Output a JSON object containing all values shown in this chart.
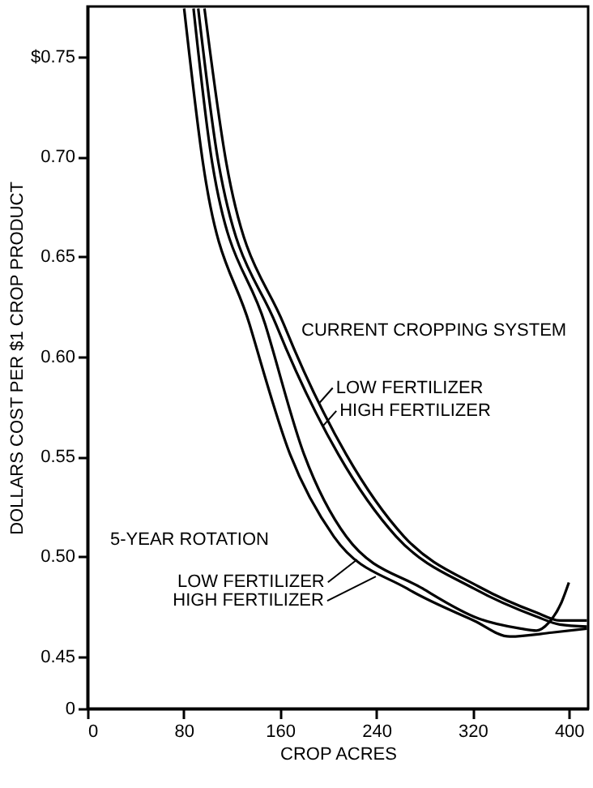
{
  "chart_data": {
    "type": "line",
    "xlabel": "CROP ACRES",
    "ylabel": "DOLLARS COST PER $1 CROP PRODUCT",
    "xlim": [
      0,
      416
    ],
    "ylim": [
      0.424,
      0.775
    ],
    "xticks": [
      0,
      80,
      160,
      240,
      320,
      400
    ],
    "yticks": [
      {
        "value": 0.424,
        "label": "0"
      },
      {
        "value": 0.45,
        "label": "0.45"
      },
      {
        "value": 0.5,
        "label": "0.50"
      },
      {
        "value": 0.55,
        "label": "0.55"
      },
      {
        "value": 0.6,
        "label": "0.60"
      },
      {
        "value": 0.65,
        "label": "0.65"
      },
      {
        "value": 0.7,
        "label": "0.70"
      },
      {
        "value": 0.75,
        "label": "$0.75"
      }
    ],
    "grid": false,
    "marker": "none",
    "line_style": "solid",
    "series": [
      {
        "color": "#000000",
        "x": [
          80.3,
          95.9,
          134.7,
          168.4,
          204.7,
          265.5,
          321,
          351,
          386,
          415
        ],
        "values": [
          0.774,
          0.697,
          0.616,
          0.551,
          0.51,
          0.484,
          0.468,
          0.46,
          0.462,
          0.464
        ]
      },
      {
        "color": "#000000",
        "x": [
          88.1,
          103.6,
          147.7,
          180,
          215,
          278.5,
          325,
          360,
          373,
          383.4,
          393.8,
          400
        ],
        "values": [
          0.774,
          0.697,
          0.616,
          0.551,
          0.51,
          0.484,
          0.469,
          0.464,
          0.463,
          0.467,
          0.477,
          0.487
        ]
      },
      {
        "color": "#000000",
        "x": [
          92,
          108.8,
          156.7,
          208.5,
          256.5,
          321,
          373,
          392.5,
          415
        ],
        "values": [
          0.774,
          0.697,
          0.616,
          0.551,
          0.51,
          0.484,
          0.47,
          0.466,
          0.465
        ]
      },
      {
        "color": "#000000",
        "x": [
          97.2,
          115.3,
          163.2,
          215,
          263,
          325,
          373,
          392.5,
          415
        ],
        "values": [
          0.774,
          0.697,
          0.616,
          0.551,
          0.51,
          0.485,
          0.472,
          0.468,
          0.468
        ]
      }
    ],
    "annotations": [
      "CURRENT CROPPING SYSTEM",
      {
        "text": "LOW FERTILIZER",
        "x": 193,
        "y": 0.577
      },
      {
        "text": "HIGH FERTILIZER",
        "x": 196,
        "y": 0.5655
      },
      "5-YEAR ROTATION",
      {
        "text": "LOW FERTILIZER",
        "x": 224,
        "y": 0.4985
      },
      {
        "text": "HIGH FERTILIZER",
        "x": 239.6,
        "y": 0.49
      }
    ]
  }
}
